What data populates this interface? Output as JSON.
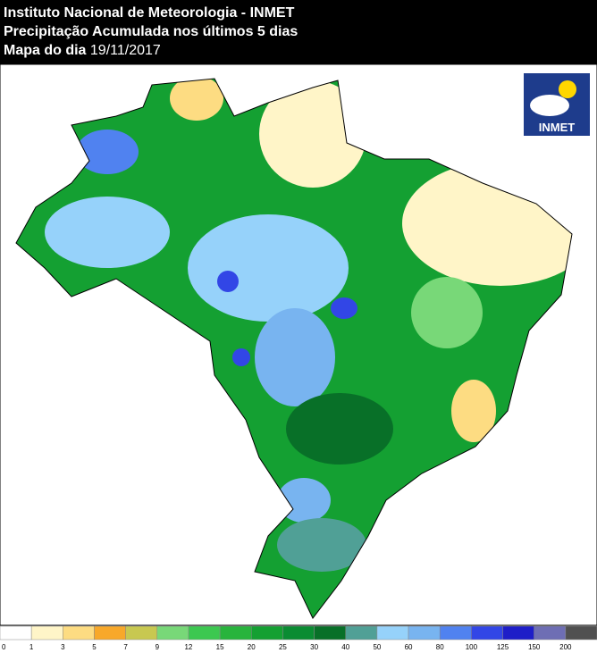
{
  "header": {
    "line1": "Instituto Nacional de Meteorologia - INMET",
    "line2": "Precipitação Acumulada nos últimos 5 dias",
    "line3_label": "Mapa do dia",
    "line3_date": "19/11/2017"
  },
  "logo": {
    "text": "INMET"
  },
  "legend": {
    "bins": [
      0,
      1,
      3,
      5,
      7,
      9,
      12,
      15,
      20,
      25,
      30,
      40,
      50,
      60,
      80,
      100,
      125,
      150,
      200
    ],
    "colors": [
      "#ffffff",
      "#fff5c8",
      "#fddc82",
      "#f8a82a",
      "#c8c850",
      "#78d878",
      "#3cc850",
      "#28b43c",
      "#14a032",
      "#0a8c32",
      "#087028",
      "#50a096",
      "#96d2fa",
      "#78b4f0",
      "#5082f0",
      "#3246e6",
      "#1e1ec8",
      "#6e6eb4",
      "#505050"
    ]
  }
}
